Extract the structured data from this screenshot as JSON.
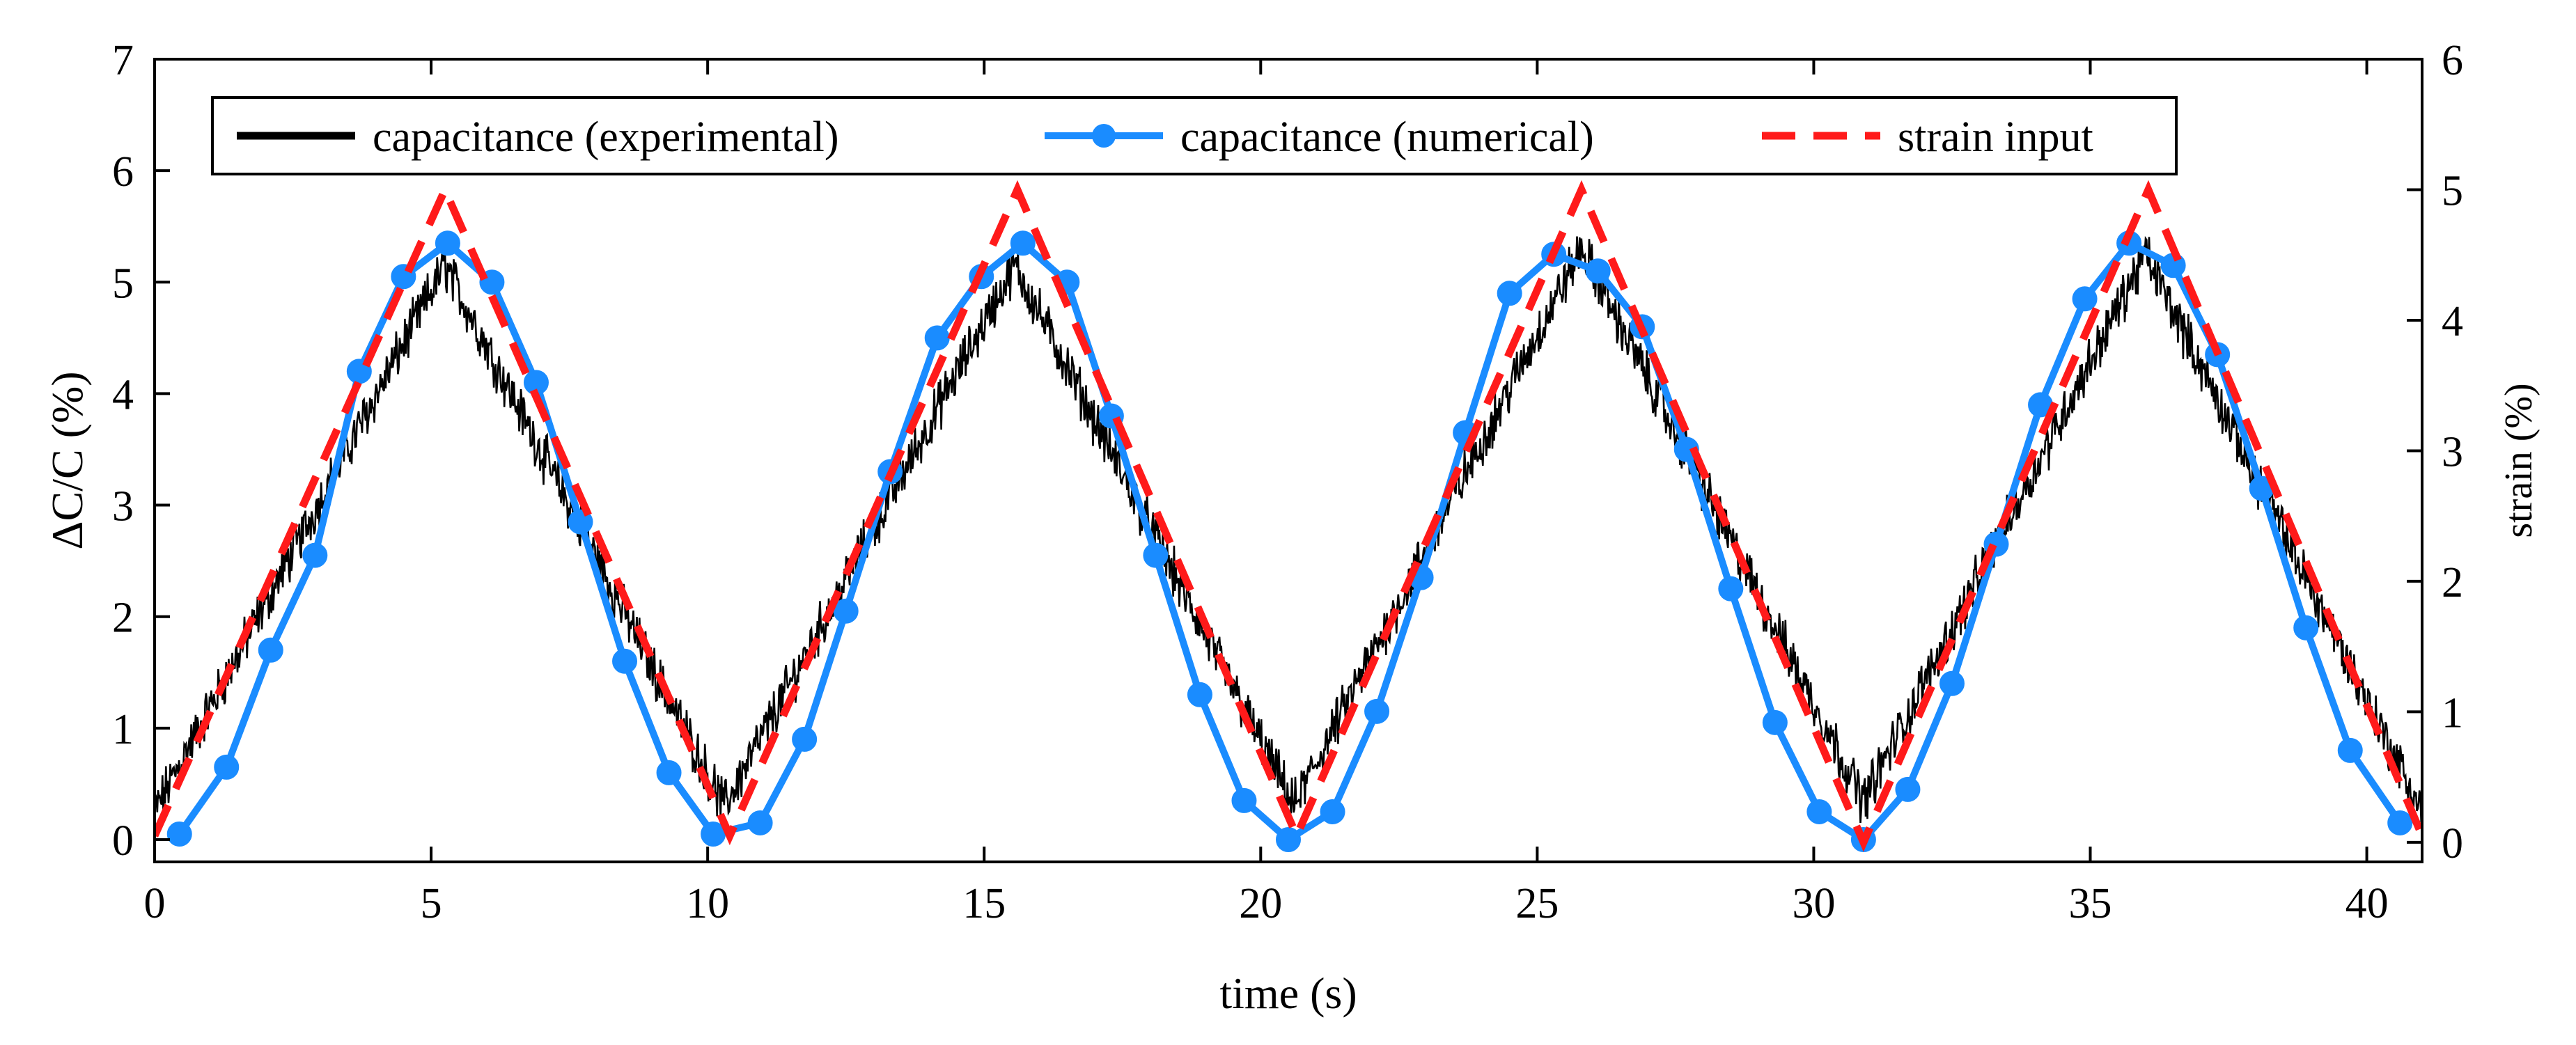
{
  "chart_data": {
    "type": "line",
    "title": "",
    "xlabel": "time (s)",
    "ylabel_left": "ΔC/C (%)",
    "ylabel_right": "strain (%)",
    "xlim": [
      0,
      41
    ],
    "ylim_left": [
      -0.2,
      7
    ],
    "ylim_right": [
      -0.15,
      6
    ],
    "x_ticks": [
      0,
      5,
      10,
      15,
      20,
      25,
      30,
      35,
      40
    ],
    "x_tick_labels": [
      "0",
      "5",
      "10",
      "15",
      "20",
      "25",
      "30",
      "35",
      "40"
    ],
    "y_left_ticks": [
      0,
      1,
      2,
      3,
      4,
      5,
      6,
      7
    ],
    "y_left_tick_labels": [
      "0",
      "1",
      "2",
      "3",
      "4",
      "5",
      "6",
      "7"
    ],
    "y_right_ticks": [
      0,
      1,
      2,
      3,
      4,
      5,
      6
    ],
    "y_right_tick_labels": [
      "0",
      "1",
      "2",
      "3",
      "4",
      "5",
      "6"
    ],
    "grid": false,
    "legend_position": "top",
    "series": [
      {
        "name": "capacitance (experimental)",
        "axis": "left",
        "color": "#000000",
        "style": "solid-noisy",
        "noise_amplitude": 0.18,
        "x": [
          0,
          5.25,
          10.3,
          15.55,
          20.6,
          25.8,
          30.9,
          36.0,
          41
        ],
        "y": [
          0.25,
          5.15,
          0.3,
          5.15,
          0.3,
          5.3,
          0.35,
          5.25,
          0.25
        ]
      },
      {
        "name": "capacitance (numerical)",
        "axis": "left",
        "color": "#1a8cff",
        "style": "solid-markers",
        "x": [
          0.45,
          1.3,
          2.1,
          2.9,
          3.7,
          4.5,
          5.3,
          6.1,
          6.9,
          7.7,
          8.5,
          9.3,
          10.1,
          10.95,
          11.75,
          12.5,
          13.3,
          14.15,
          14.95,
          15.7,
          16.5,
          17.3,
          18.1,
          18.9,
          19.7,
          20.5,
          21.3,
          22.1,
          22.9,
          23.7,
          24.5,
          25.3,
          26.1,
          26.9,
          27.7,
          28.5,
          29.3,
          30.1,
          30.9,
          31.7,
          32.5,
          33.3,
          34.1,
          34.9,
          35.7,
          36.5,
          37.3,
          38.1,
          38.9,
          39.7,
          40.6
        ],
        "y": [
          0.05,
          0.65,
          1.7,
          2.55,
          4.2,
          5.05,
          5.35,
          5.0,
          4.1,
          2.85,
          1.6,
          0.6,
          0.05,
          0.15,
          0.9,
          2.05,
          3.3,
          4.5,
          5.05,
          5.35,
          5.0,
          3.8,
          2.55,
          1.3,
          0.35,
          0.0,
          0.25,
          1.15,
          2.35,
          3.65,
          4.9,
          5.25,
          5.1,
          4.6,
          3.5,
          2.25,
          1.05,
          0.25,
          0.0,
          0.45,
          1.4,
          2.65,
          3.9,
          4.85,
          5.35,
          5.15,
          4.35,
          3.15,
          1.9,
          0.8,
          0.15
        ]
      },
      {
        "name": "strain input",
        "axis": "right",
        "color": "#ff1a1a",
        "style": "dashed",
        "x": [
          0,
          5.25,
          10.4,
          15.6,
          20.65,
          25.8,
          30.9,
          36.05,
          41
        ],
        "y": [
          0.05,
          5.0,
          0.05,
          5.0,
          0.05,
          5.0,
          0.0,
          5.0,
          0.05
        ]
      }
    ]
  },
  "legend": {
    "items": [
      {
        "label": "capacitance (experimental)",
        "color": "#000000",
        "style": "solid"
      },
      {
        "label": "capacitance (numerical)",
        "color": "#1a8cff",
        "style": "marker"
      },
      {
        "label": "strain input",
        "color": "#ff1a1a",
        "style": "dashed"
      }
    ]
  }
}
